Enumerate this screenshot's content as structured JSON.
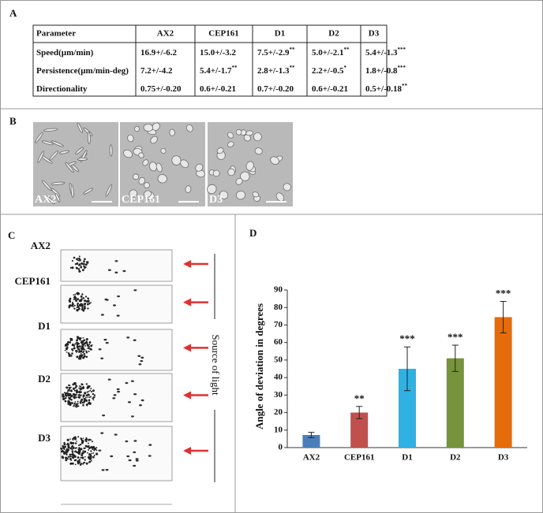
{
  "panels": {
    "A": {
      "label": "A",
      "table": {
        "header": [
          "Parameter",
          "AX2",
          "CEP161",
          "D1",
          "D2",
          "D3"
        ],
        "rows": [
          [
            {
              "text": "Speed(µm/min)"
            },
            {
              "text": "16.9+/-6.2"
            },
            {
              "text": "15.0+/-3.2"
            },
            {
              "text": "7.5+/-2.9",
              "sup": "**"
            },
            {
              "text": "5.0+/-2.1",
              "sup": "**"
            },
            {
              "text": "5.4+/-1.3",
              "sup": "***"
            }
          ],
          [
            {
              "text": "Persistence(µm/min-deg)"
            },
            {
              "text": "7.2+/-4.2"
            },
            {
              "text": "5.4+/-1.7",
              "sup": "**"
            },
            {
              "text": "2.8+/-1.3",
              "sup": "**"
            },
            {
              "text": "2.2+/-0.5",
              "sup": "*"
            },
            {
              "text": "1.8+/-0.8",
              "sup": "***"
            }
          ],
          [
            {
              "text": "Directionality"
            },
            {
              "text": "0.75+/-0.20"
            },
            {
              "text": "0.6+/-0.21"
            },
            {
              "text": "0.7+/-0.20"
            },
            {
              "text": "0.6+/-0.21"
            },
            {
              "text": "0.5+/-0.18",
              "sup": "**"
            }
          ]
        ]
      }
    },
    "B": {
      "label": "B",
      "images": [
        "AX2",
        "CEP161",
        "D3"
      ]
    },
    "C": {
      "label": "C",
      "rows": [
        "AX2",
        "CEP161",
        "D1",
        "D2",
        "D3"
      ],
      "side_label": "Source of light"
    },
    "D": {
      "label": "D"
    }
  },
  "chart_data": {
    "type": "bar",
    "ylabel": "Angle of deviation in degrees",
    "categories": [
      "AX2",
      "CEP161",
      "D1",
      "D2",
      "D3"
    ],
    "values": [
      7.2,
      20,
      45,
      51,
      74.5
    ],
    "errors": [
      1.5,
      3.5,
      12.5,
      7.5,
      9
    ],
    "annotations": [
      null,
      "**",
      "***",
      "***",
      "***"
    ],
    "colors": [
      "#4a7ebb",
      "#c0504d",
      "#2fb1e3",
      "#77933c",
      "#e46c0a"
    ],
    "ylim": [
      0,
      90
    ],
    "yticks": [
      0,
      10,
      20,
      30,
      40,
      50,
      60,
      70,
      80,
      90
    ]
  }
}
